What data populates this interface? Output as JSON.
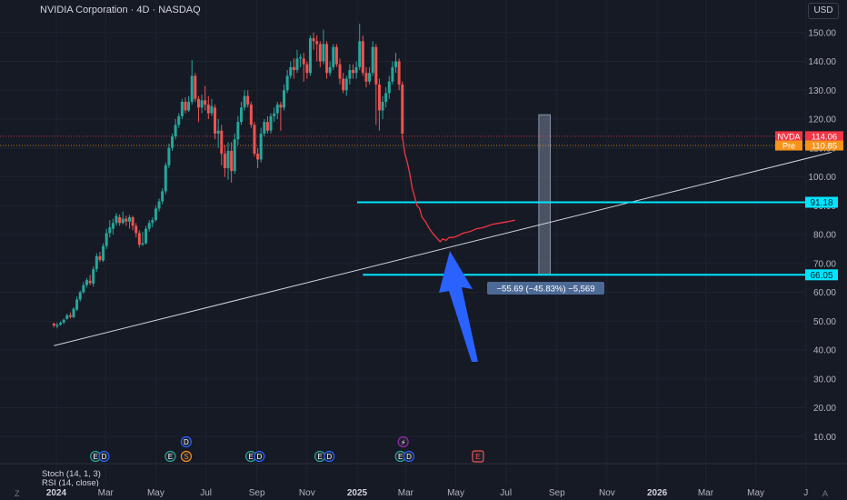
{
  "header": {
    "title": "NVIDIA Corporation · 4D · NASDAQ"
  },
  "currency_button": "USD",
  "indicators": {
    "stoch": "Stoch (14, 1, 3)",
    "rsi": "RSI (14, close)"
  },
  "corner_left": "Z",
  "corner_right": "A",
  "colors": {
    "bull": "#26a69a",
    "bear": "#ef5350",
    "cyan": "#00e5ff",
    "trend": "#d0d3da",
    "line": "#f23645",
    "arrow": "#2962ff",
    "pre": "#f7931a",
    "bg": "#161a25"
  },
  "chart_data": {
    "type": "candlestick",
    "y_ticks": [
      10,
      20,
      30,
      40,
      50,
      60,
      70,
      80,
      90,
      100,
      110,
      120,
      130,
      140,
      150
    ],
    "y_tick_labels": [
      "10.00",
      "20.00",
      "30.00",
      "40.00",
      "50.00",
      "60.00",
      "70.00",
      "80.00",
      "90.00",
      "100.00",
      "110.00",
      "120.00",
      "130.00",
      "140.00",
      "150.00"
    ],
    "x_labels": [
      {
        "label": "2024",
        "date": "2024-01-01",
        "bold": true
      },
      {
        "label": "Mar",
        "date": "2024-03-01"
      },
      {
        "label": "May",
        "date": "2024-05-01"
      },
      {
        "label": "Jul",
        "date": "2024-07-01"
      },
      {
        "label": "Sep",
        "date": "2024-09-01"
      },
      {
        "label": "Nov",
        "date": "2024-11-01"
      },
      {
        "label": "2025",
        "date": "2025-01-01",
        "bold": true
      },
      {
        "label": "Mar",
        "date": "2025-03-01"
      },
      {
        "label": "May",
        "date": "2025-05-01"
      },
      {
        "label": "Jul",
        "date": "2025-07-01"
      },
      {
        "label": "Sep",
        "date": "2025-09-01"
      },
      {
        "label": "Nov",
        "date": "2025-11-01"
      },
      {
        "label": "2026",
        "date": "2026-01-01",
        "bold": true
      },
      {
        "label": "Mar",
        "date": "2026-03-01"
      },
      {
        "label": "May",
        "date": "2026-05-01"
      },
      {
        "label": "J",
        "date": "2026-07-01"
      }
    ],
    "candles": [
      [
        "2023-12-29",
        49.2,
        48.5,
        47.8,
        49.4
      ],
      [
        "2024-01-02",
        48.2,
        48.7,
        47.5,
        49.5
      ],
      [
        "2024-01-06",
        48.8,
        49.4,
        48.4,
        49.9
      ],
      [
        "2024-01-10",
        49.5,
        50.5,
        49.0,
        50.9
      ],
      [
        "2024-01-14",
        50.8,
        52.0,
        50.5,
        52.6
      ],
      [
        "2024-01-18",
        52.0,
        51.5,
        50.9,
        53.0
      ],
      [
        "2024-01-22",
        51.3,
        54.3,
        51.1,
        54.8
      ],
      [
        "2024-01-26",
        54.0,
        57.5,
        53.5,
        58.5
      ],
      [
        "2024-01-30",
        57.5,
        60.0,
        56.8,
        60.6
      ],
      [
        "2024-02-03",
        60.0,
        62.5,
        59.5,
        63.5
      ],
      [
        "2024-02-07",
        62.5,
        64.2,
        61.8,
        65.0
      ],
      [
        "2024-02-11",
        64.0,
        63.2,
        62.5,
        66.0
      ],
      [
        "2024-02-15",
        63.0,
        68.0,
        62.0,
        69.0
      ],
      [
        "2024-02-19",
        68.0,
        72.5,
        67.0,
        73.5
      ],
      [
        "2024-02-23",
        72.5,
        71.2,
        70.5,
        74.0
      ],
      [
        "2024-02-27",
        71.0,
        76.0,
        70.5,
        77.0
      ],
      [
        "2024-03-02",
        76.0,
        80.5,
        75.0,
        82.0
      ],
      [
        "2024-03-06",
        80.5,
        82.5,
        79.0,
        85.0
      ],
      [
        "2024-03-10",
        82.0,
        84.0,
        80.0,
        85.5
      ],
      [
        "2024-03-14",
        84.0,
        86.5,
        83.0,
        87.5
      ],
      [
        "2024-03-18",
        86.0,
        84.0,
        83.0,
        87.0
      ],
      [
        "2024-03-22",
        84.0,
        85.5,
        83.5,
        88.0
      ],
      [
        "2024-03-26",
        85.5,
        84.5,
        83.0,
        86.5
      ],
      [
        "2024-03-30",
        84.5,
        86.0,
        82.0,
        86.8
      ],
      [
        "2024-04-03",
        86.0,
        83.0,
        81.5,
        86.5
      ],
      [
        "2024-04-07",
        83.0,
        80.5,
        79.0,
        84.0
      ],
      [
        "2024-04-11",
        80.5,
        76.5,
        75.5,
        81.5
      ],
      [
        "2024-04-15",
        76.5,
        77.0,
        76.0,
        81.0
      ],
      [
        "2024-04-19",
        77.0,
        82.0,
        76.5,
        83.0
      ],
      [
        "2024-04-23",
        82.0,
        84.0,
        81.0,
        85.0
      ],
      [
        "2024-04-27",
        84.0,
        85.0,
        82.5,
        86.0
      ],
      [
        "2024-05-01",
        85.0,
        89.0,
        84.5,
        90.0
      ],
      [
        "2024-05-05",
        89.0,
        91.5,
        88.0,
        92.5
      ],
      [
        "2024-05-09",
        91.5,
        95.0,
        90.5,
        96.0
      ],
      [
        "2024-05-13",
        95.0,
        104.0,
        94.0,
        105.0
      ],
      [
        "2024-05-17",
        104.0,
        110.0,
        103.0,
        111.5
      ],
      [
        "2024-05-21",
        110.0,
        114.0,
        109.0,
        115.0
      ],
      [
        "2024-05-25",
        114.0,
        118.0,
        113.0,
        120.0
      ],
      [
        "2024-05-29",
        118.0,
        121.0,
        117.0,
        122.0
      ],
      [
        "2024-06-02",
        121.0,
        126.0,
        120.0,
        127.0
      ],
      [
        "2024-06-06",
        126.0,
        123.0,
        122.0,
        127.5
      ],
      [
        "2024-06-10",
        123.0,
        126.0,
        122.5,
        128.0
      ],
      [
        "2024-06-14",
        126.0,
        135.0,
        125.0,
        140.5
      ],
      [
        "2024-06-18",
        135.0,
        127.0,
        126.0,
        136.0
      ],
      [
        "2024-06-22",
        127.0,
        124.0,
        119.0,
        128.0
      ],
      [
        "2024-06-26",
        124.0,
        126.5,
        122.0,
        128.5
      ],
      [
        "2024-06-30",
        126.5,
        125.0,
        123.0,
        131.5
      ],
      [
        "2024-07-04",
        125.0,
        122.0,
        120.0,
        128.0
      ],
      [
        "2024-07-08",
        122.0,
        124.5,
        121.0,
        127.0
      ],
      [
        "2024-07-12",
        124.0,
        115.0,
        113.0,
        125.0
      ],
      [
        "2024-07-16",
        115.0,
        116.0,
        110.0,
        120.0
      ],
      [
        "2024-07-20",
        116.0,
        108.0,
        104.0,
        118.0
      ],
      [
        "2024-07-24",
        108.0,
        103.0,
        100.0,
        111.0
      ],
      [
        "2024-07-28",
        103.0,
        109.0,
        99.0,
        112.0
      ],
      [
        "2024-08-01",
        109.0,
        102.0,
        98.0,
        112.0
      ],
      [
        "2024-08-05",
        102.0,
        113.0,
        101.0,
        115.0
      ],
      [
        "2024-08-09",
        113.0,
        119.0,
        111.0,
        121.0
      ],
      [
        "2024-08-13",
        119.0,
        124.0,
        118.0,
        126.0
      ],
      [
        "2024-08-17",
        124.0,
        128.0,
        123.0,
        130.0
      ],
      [
        "2024-08-21",
        128.0,
        125.0,
        124.0,
        130.0
      ],
      [
        "2024-08-25",
        125.0,
        118.0,
        117.0,
        126.0
      ],
      [
        "2024-08-29",
        118.0,
        108.0,
        107.0,
        119.0
      ],
      [
        "2024-09-02",
        108.0,
        106.0,
        103.0,
        110.0
      ],
      [
        "2024-09-06",
        106.0,
        115.0,
        105.0,
        117.0
      ],
      [
        "2024-09-10",
        115.0,
        119.0,
        114.0,
        120.0
      ],
      [
        "2024-09-14",
        119.0,
        116.0,
        115.0,
        121.0
      ],
      [
        "2024-09-18",
        116.0,
        121.0,
        115.0,
        122.0
      ],
      [
        "2024-09-22",
        121.0,
        122.0,
        119.0,
        124.0
      ],
      [
        "2024-09-26",
        122.0,
        125.0,
        120.0,
        126.0
      ],
      [
        "2024-09-30",
        125.0,
        124.0,
        116.0,
        126.0
      ],
      [
        "2024-10-04",
        124.0,
        130.0,
        123.0,
        132.0
      ],
      [
        "2024-10-08",
        130.0,
        135.0,
        129.0,
        137.0
      ],
      [
        "2024-10-12",
        135.0,
        138.0,
        134.0,
        140.0
      ],
      [
        "2024-10-16",
        138.0,
        137.0,
        134.0,
        141.0
      ],
      [
        "2024-10-20",
        137.0,
        141.0,
        136.0,
        144.0
      ],
      [
        "2024-10-24",
        141.0,
        141.5,
        138.0,
        142.5
      ],
      [
        "2024-10-28",
        141.0,
        139.0,
        133.0,
        143.0
      ],
      [
        "2024-11-01",
        139.0,
        136.0,
        134.0,
        140.0
      ],
      [
        "2024-11-05",
        136.0,
        148.0,
        135.0,
        149.0
      ],
      [
        "2024-11-09",
        148.0,
        147.0,
        144.0,
        150.0
      ],
      [
        "2024-11-13",
        147.0,
        146.0,
        140.0,
        149.0
      ],
      [
        "2024-11-17",
        146.0,
        140.0,
        138.0,
        147.0
      ],
      [
        "2024-11-21",
        140.0,
        146.0,
        139.0,
        151.0
      ],
      [
        "2024-11-25",
        146.0,
        136.0,
        134.0,
        147.0
      ],
      [
        "2024-11-29",
        136.0,
        138.0,
        135.0,
        140.0
      ],
      [
        "2024-12-03",
        138.0,
        145.0,
        137.0,
        146.0
      ],
      [
        "2024-12-07",
        145.0,
        139.0,
        138.0,
        146.0
      ],
      [
        "2024-12-11",
        139.0,
        134.0,
        132.0,
        141.0
      ],
      [
        "2024-12-15",
        134.0,
        130.0,
        129.0,
        136.0
      ],
      [
        "2024-12-19",
        130.0,
        134.0,
        128.0,
        135.0
      ],
      [
        "2024-12-23",
        134.0,
        137.0,
        132.0,
        139.0
      ],
      [
        "2024-12-27",
        137.0,
        136.0,
        134.0,
        139.0
      ],
      [
        "2024-12-31",
        136.0,
        138.0,
        134.0,
        140.0
      ],
      [
        "2025-01-04",
        138.0,
        147.0,
        137.0,
        153.0
      ],
      [
        "2025-01-08",
        147.0,
        136.0,
        135.0,
        149.0
      ],
      [
        "2025-01-12",
        136.0,
        133.0,
        131.0,
        138.0
      ],
      [
        "2025-01-16",
        133.0,
        136.0,
        132.0,
        138.0
      ],
      [
        "2025-01-20",
        136.0,
        145.0,
        135.0,
        147.0
      ],
      [
        "2025-01-24",
        145.0,
        132.0,
        118.0,
        146.0
      ],
      [
        "2025-01-28",
        132.0,
        123.0,
        116.0,
        134.0
      ],
      [
        "2025-02-01",
        123.0,
        126.0,
        120.0,
        128.0
      ],
      [
        "2025-02-05",
        126.0,
        129.0,
        124.0,
        131.0
      ],
      [
        "2025-02-09",
        129.0,
        133.0,
        127.0,
        135.0
      ],
      [
        "2025-02-13",
        133.0,
        138.0,
        132.0,
        140.0
      ],
      [
        "2025-02-17",
        138.0,
        140.0,
        136.0,
        143.0
      ],
      [
        "2025-02-21",
        140.0,
        132.0,
        130.0,
        141.0
      ],
      [
        "2025-02-25",
        132.0,
        115.0,
        113.0,
        133.0
      ]
    ],
    "line": {
      "x": [
        "2025-02-25",
        "2025-02-28",
        "2025-03-03",
        "2025-03-06",
        "2025-03-09",
        "2025-03-12",
        "2025-03-15",
        "2025-03-18",
        "2025-03-21",
        "2025-03-25",
        "2025-03-30",
        "2025-04-04",
        "2025-04-09",
        "2025-04-12",
        "2025-04-15",
        "2025-04-19",
        "2025-04-23",
        "2025-04-28",
        "2025-05-03",
        "2025-05-10",
        "2025-05-18",
        "2025-05-26",
        "2025-06-04",
        "2025-06-14",
        "2025-06-24",
        "2025-07-04",
        "2025-07-12"
      ],
      "y": [
        114,
        108,
        105,
        101,
        96,
        93,
        90,
        89,
        86,
        84.5,
        82,
        80,
        78.5,
        77.5,
        78.5,
        78,
        79,
        79,
        79.5,
        80.5,
        81,
        82,
        82.5,
        83.5,
        84,
        84.5,
        85
      ]
    },
    "hlines": [
      {
        "value": 91.18,
        "label": "91.18",
        "from": "2025-01-01"
      },
      {
        "value": 66.05,
        "label": "66.05",
        "from": "2025-01-08"
      }
    ],
    "trendline": [
      [
        "2023-12-29",
        41.5
      ],
      [
        "2026-08-01",
        108.5
      ]
    ],
    "price_lines": [
      {
        "value": 114.06,
        "tag": "NVDA",
        "label": "114.06",
        "color": "#f23645"
      },
      {
        "value": 110.85,
        "tag": "Pre",
        "label": "110.85",
        "color": "#f7931a"
      }
    ],
    "range_box": {
      "from": "2025-08-10",
      "to": "2025-08-24",
      "top": 121.5,
      "bottom": 66.05
    },
    "measure_label": "−55.69 (−45.83%) −5,569",
    "event_markers": [
      {
        "date": "2024-02-21",
        "row": 2,
        "text": "E",
        "kind": "earnings"
      },
      {
        "date": "2024-02-28",
        "row": 2,
        "text": "D",
        "kind": "dividend"
      },
      {
        "date": "2024-05-22",
        "row": 2,
        "text": "E",
        "kind": "earnings"
      },
      {
        "date": "2024-06-07",
        "row": 1,
        "text": "D",
        "kind": "dividend"
      },
      {
        "date": "2024-06-07",
        "row": 2,
        "text": "S",
        "kind": "split"
      },
      {
        "date": "2024-08-28",
        "row": 2,
        "text": "E",
        "kind": "earnings"
      },
      {
        "date": "2024-09-04",
        "row": 2,
        "text": "D",
        "kind": "dividend"
      },
      {
        "date": "2024-11-20",
        "row": 2,
        "text": "E",
        "kind": "earnings"
      },
      {
        "date": "2024-11-28",
        "row": 2,
        "text": "D",
        "kind": "dividend"
      },
      {
        "date": "2025-02-26",
        "row": 1,
        "text": "⚡",
        "kind": "flash"
      },
      {
        "date": "2025-02-26",
        "row": 2,
        "text": "E",
        "kind": "earnings"
      },
      {
        "date": "2025-03-05",
        "row": 2,
        "text": "D",
        "kind": "dividend"
      },
      {
        "date": "2025-05-28",
        "row": 2,
        "text": "E",
        "kind": "upcoming"
      }
    ]
  }
}
